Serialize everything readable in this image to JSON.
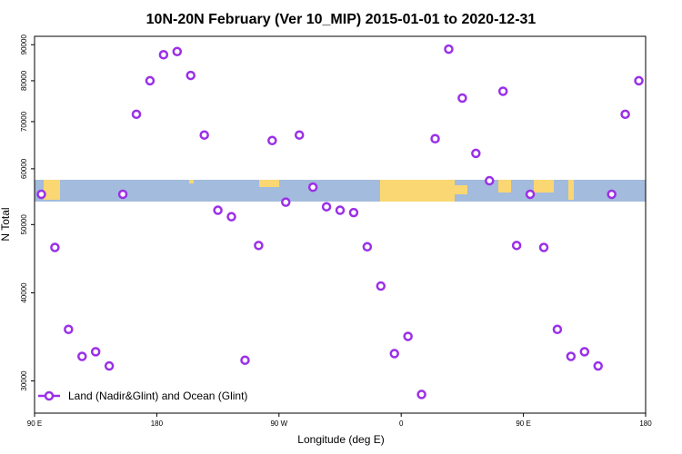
{
  "chart_data": {
    "type": "scatter",
    "title": "10N-20N February (Ver 10_MIP)   2015-01-01 to 2020-12-31",
    "x_label": "Longitude (deg E)",
    "y_label": "N Total",
    "x": [
      95,
      105,
      115,
      125,
      135,
      145,
      155,
      165,
      175,
      185,
      195,
      205,
      215,
      225,
      235,
      245,
      255,
      265,
      275,
      285,
      295,
      305,
      315,
      325,
      335,
      345,
      355,
      365,
      375,
      385,
      395,
      405,
      415,
      425,
      435,
      445,
      455,
      465,
      475,
      485,
      495,
      505,
      515,
      525,
      535
    ],
    "series": [
      {
        "name": "Land (Nadir&Glint) and Ocean (Glint)",
        "color": "#9b30e8",
        "values": [
          55200,
          46400,
          35500,
          32500,
          33000,
          31500,
          55200,
          71700,
          80000,
          87100,
          88000,
          81400,
          67000,
          52400,
          51300,
          32100,
          46700,
          65800,
          53800,
          67000,
          56500,
          53000,
          52400,
          52000,
          46500,
          40900,
          32800,
          34700,
          28700,
          66200,
          88700,
          75600,
          63100,
          57700,
          77300,
          46700,
          55200,
          46400,
          35500,
          32500,
          33000,
          31500,
          55200,
          71700,
          80000
        ]
      }
    ],
    "xlim": [
      90,
      540
    ],
    "ylim": [
      27000,
      92500
    ],
    "y_scale": "log",
    "xticks": [
      {
        "value": 90,
        "label": "90 E"
      },
      {
        "value": 180,
        "label": "180"
      },
      {
        "value": 270,
        "label": "90 W"
      },
      {
        "value": 360,
        "label": "0"
      },
      {
        "value": 450,
        "label": "90 E"
      },
      {
        "value": 540,
        "label": "180"
      }
    ],
    "yticks": [
      30000,
      40000,
      50000,
      60000,
      70000,
      80000,
      90000
    ],
    "legend": "lower left"
  }
}
